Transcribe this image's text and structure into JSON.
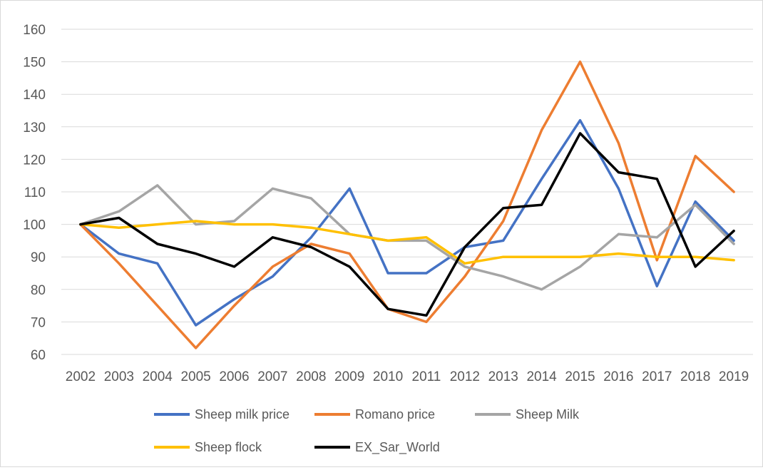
{
  "chart_data": {
    "type": "line",
    "x": [
      "2002",
      "2003",
      "2004",
      "2005",
      "2006",
      "2007",
      "2008",
      "2009",
      "2010",
      "2011",
      "2012",
      "2013",
      "2014",
      "2015",
      "2016",
      "2017",
      "2018",
      "2019"
    ],
    "ylim": [
      60,
      160
    ],
    "yticks": [
      60,
      70,
      80,
      90,
      100,
      110,
      120,
      130,
      140,
      150,
      160
    ],
    "grid": true,
    "legend_position": "bottom",
    "series": [
      {
        "name": "Sheep milk price",
        "color": "#4472c4",
        "values": [
          100,
          91,
          88,
          69,
          77,
          84,
          96,
          111,
          85,
          85,
          93,
          95,
          114,
          132,
          111,
          81,
          107,
          95
        ]
      },
      {
        "name": "Romano price",
        "color": "#ed7d31",
        "values": [
          100,
          88,
          75,
          62,
          75,
          87,
          94,
          91,
          74,
          70,
          84,
          101,
          129,
          150,
          125,
          89,
          121,
          110
        ]
      },
      {
        "name": "Sheep Milk",
        "color": "#a5a5a5",
        "values": [
          100,
          104,
          112,
          100,
          101,
          111,
          108,
          97,
          95,
          95,
          87,
          84,
          80,
          87,
          97,
          96,
          106,
          94
        ]
      },
      {
        "name": "Sheep flock",
        "color": "#ffc000",
        "values": [
          100,
          99,
          100,
          101,
          100,
          100,
          99,
          97,
          95,
          96,
          88,
          90,
          90,
          90,
          91,
          90,
          90,
          89
        ]
      },
      {
        "name": "EX_Sar_World",
        "color": "#000000",
        "values": [
          100,
          102,
          94,
          91,
          87,
          96,
          93,
          87,
          74,
          72,
          93,
          105,
          106,
          128,
          116,
          114,
          87,
          98
        ]
      }
    ]
  }
}
